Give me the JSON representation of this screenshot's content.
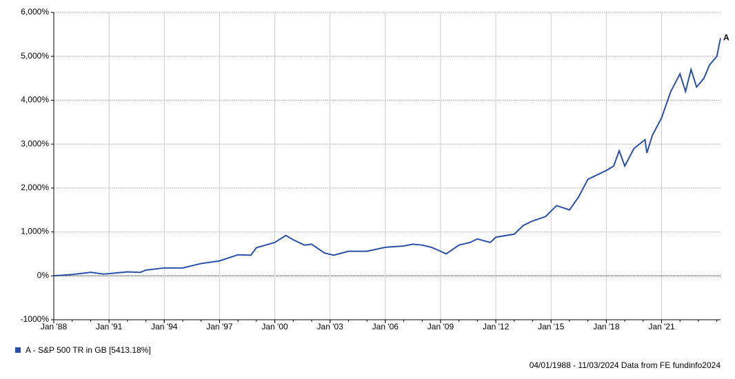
{
  "chart_data": {
    "type": "line",
    "x": [
      1988.0,
      1989.0,
      1990.0,
      1990.7,
      1991.0,
      1992.0,
      1992.7,
      1993.0,
      1994.0,
      1995.0,
      1996.0,
      1997.0,
      1998.0,
      1998.7,
      1999.0,
      2000.0,
      2000.6,
      2001.0,
      2001.6,
      2002.0,
      2002.7,
      2003.2,
      2004.0,
      2005.0,
      2006.0,
      2007.0,
      2007.5,
      2008.0,
      2008.5,
      2009.0,
      2009.3,
      2010.0,
      2010.6,
      2011.0,
      2011.7,
      2012.0,
      2013.0,
      2013.5,
      2014.0,
      2014.7,
      2015.3,
      2016.0,
      2016.5,
      2017.0,
      2018.0,
      2018.4,
      2018.7,
      2019.0,
      2019.5,
      2020.1,
      2020.2,
      2020.5,
      2021.0,
      2021.5,
      2022.0,
      2022.3,
      2022.6,
      2022.9,
      2023.3,
      2023.6,
      2024.0,
      2024.2
    ],
    "series": [
      {
        "name": "A - S&P 500 TR in GB [5413.18%]",
        "label": "A",
        "color": "#2a4fa8",
        "values": [
          0,
          30,
          80,
          40,
          50,
          90,
          80,
          130,
          180,
          180,
          280,
          340,
          480,
          470,
          640,
          760,
          920,
          820,
          700,
          720,
          520,
          470,
          560,
          560,
          650,
          680,
          720,
          700,
          650,
          560,
          500,
          700,
          760,
          840,
          760,
          880,
          950,
          1150,
          1250,
          1350,
          1600,
          1500,
          1800,
          2200,
          2400,
          2500,
          2850,
          2500,
          2900,
          3100,
          2800,
          3200,
          3600,
          4200,
          4600,
          4200,
          4700,
          4300,
          4500,
          4800,
          5000,
          5413.18
        ]
      }
    ],
    "xlim": [
      1988.0,
      2024.2
    ],
    "xticks": [
      {
        "value": 1988,
        "label": "Jan '88"
      },
      {
        "value": 1991,
        "label": "Jan '91"
      },
      {
        "value": 1994,
        "label": "Jan '94"
      },
      {
        "value": 1997,
        "label": "Jan '97"
      },
      {
        "value": 2000,
        "label": "Jan '00"
      },
      {
        "value": 2003,
        "label": "Jan '03"
      },
      {
        "value": 2006,
        "label": "Jan '06"
      },
      {
        "value": 2009,
        "label": "Jan '09"
      },
      {
        "value": 2012,
        "label": "Jan '12"
      },
      {
        "value": 2015,
        "label": "Jan '15"
      },
      {
        "value": 2018,
        "label": "Jan '18"
      },
      {
        "value": 2021,
        "label": "Jan '21"
      }
    ],
    "ylim": [
      -1000,
      6000
    ],
    "yticks": [
      {
        "value": -1000,
        "label": "-1000%"
      },
      {
        "value": 0,
        "label": "0%"
      },
      {
        "value": 1000,
        "label": "1,000%"
      },
      {
        "value": 2000,
        "label": "2,000%"
      },
      {
        "value": 3000,
        "label": "3,000%"
      },
      {
        "value": 4000,
        "label": "4,000%"
      },
      {
        "value": 5000,
        "label": "5,000%"
      },
      {
        "value": 6000,
        "label": "6,000%"
      }
    ],
    "grid": true,
    "footnote": "04/01/1988 - 11/03/2024 Data from FE fundinfo2024"
  }
}
